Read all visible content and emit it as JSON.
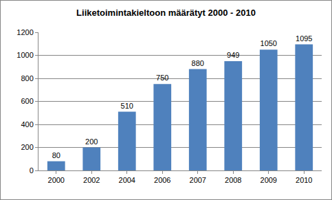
{
  "chart_data": {
    "type": "bar",
    "title": "Liiketoimintakieltoon määrätyt 2000 - 2010",
    "categories": [
      "2000",
      "2002",
      "2004",
      "2006",
      "2007",
      "2008",
      "2009",
      "2010"
    ],
    "values": [
      80,
      200,
      510,
      750,
      880,
      949,
      1050,
      1095
    ],
    "color": "#4f81bd",
    "ylim": [
      0,
      1200
    ],
    "yticks": [
      0,
      200,
      400,
      600,
      800,
      1000,
      1200
    ],
    "grid": true,
    "data_labels": true
  }
}
